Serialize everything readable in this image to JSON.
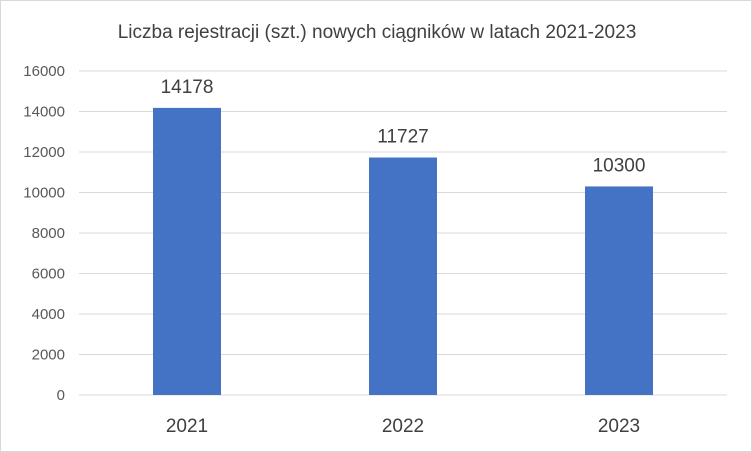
{
  "chart_data": {
    "type": "bar",
    "title": "Liczba rejestracji (szt.) nowych ciągników w latach 2021-2023",
    "categories": [
      "2021",
      "2022",
      "2023"
    ],
    "values": [
      14178,
      11727,
      10300
    ],
    "data_labels": [
      "14178",
      "11727",
      "10300"
    ],
    "xlabel": "",
    "ylabel": "",
    "ylim": [
      0,
      16000
    ],
    "yticks": [
      0,
      2000,
      4000,
      6000,
      8000,
      10000,
      12000,
      14000,
      16000
    ],
    "ytick_labels": [
      "0",
      "2000",
      "4000",
      "6000",
      "8000",
      "10000",
      "12000",
      "14000",
      "16000"
    ],
    "grid": true,
    "legend": "none",
    "bar_color": "#4472c4"
  }
}
